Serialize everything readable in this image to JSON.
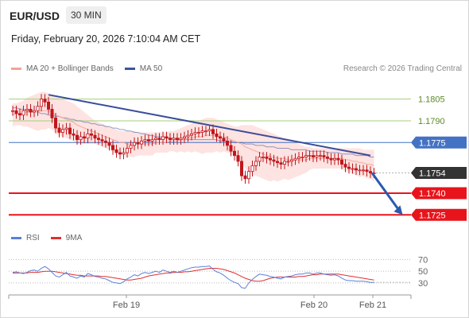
{
  "header": {
    "symbol": "EUR/USD",
    "timeframe": "30 MIN",
    "datetime": "Friday, February 20, 2026 7:10:04 AM CET"
  },
  "credit": "Research © 2026 Trading Central",
  "colors": {
    "ma20": "#f4a19a",
    "bollinger_fill": "#fde0de",
    "ma50": "#3a55a0",
    "trendline": "#3a4d9a",
    "pivot": "#4472c4",
    "resistance": "#a6cf7a",
    "support": "#e8141c",
    "candle": "#c0161c",
    "rsi": "#5b7fd9",
    "rsi_ma": "#e03030",
    "last_price_bg": "#333333"
  },
  "chart_data": [
    {
      "type": "candlestick",
      "title": "",
      "legend": [
        {
          "name": "MA 20 + Bollinger Bands",
          "color": "#f4a19a"
        },
        {
          "name": "MA 50",
          "color": "#3a55a0"
        }
      ],
      "legend_position": "top-left",
      "x_ticks": [
        "Feb 19",
        "Feb 20",
        "Feb 21"
      ],
      "ylim": [
        1.1718,
        1.1818
      ],
      "current_price": 1.1754,
      "levels": [
        {
          "value": 1.1805,
          "label": "1.1805",
          "kind": "resistance"
        },
        {
          "value": 1.179,
          "label": "1.1790",
          "kind": "resistance"
        },
        {
          "value": 1.1775,
          "label": "1.1775",
          "kind": "pivot"
        },
        {
          "value": 1.1754,
          "label": "1.1754",
          "kind": "last"
        },
        {
          "value": 1.174,
          "label": "1.1740",
          "kind": "support"
        },
        {
          "value": 1.1725,
          "label": "1.1725",
          "kind": "support"
        }
      ],
      "close": [
        1.1797,
        1.1795,
        1.1794,
        1.1797,
        1.1798,
        1.1796,
        1.1797,
        1.18,
        1.1805,
        1.1803,
        1.1798,
        1.1792,
        1.1785,
        1.1782,
        1.1784,
        1.1785,
        1.1781,
        1.178,
        1.1777,
        1.1779,
        1.1778,
        1.1781,
        1.178,
        1.1778,
        1.1777,
        1.1776,
        1.1775,
        1.1773,
        1.177,
        1.1768,
        1.1767,
        1.1768,
        1.1771,
        1.1773,
        1.1775,
        1.1774,
        1.1776,
        1.1777,
        1.1776,
        1.1777,
        1.1778,
        1.1777,
        1.1779,
        1.1778,
        1.1777,
        1.1778,
        1.1777,
        1.1778,
        1.1779,
        1.178,
        1.1781,
        1.1782,
        1.1782,
        1.1783,
        1.1783,
        1.1784,
        1.1781,
        1.1779,
        1.1778,
        1.1776,
        1.1773,
        1.1769,
        1.1766,
        1.1762,
        1.1752,
        1.175,
        1.1755,
        1.1759,
        1.1762,
        1.1765,
        1.1765,
        1.1764,
        1.1763,
        1.1762,
        1.1761,
        1.176,
        1.1762,
        1.1762,
        1.1763,
        1.1764,
        1.1765,
        1.1765,
        1.1766,
        1.1766,
        1.1765,
        1.1766,
        1.1766,
        1.1765,
        1.1764,
        1.1763,
        1.1764,
        1.1763,
        1.176,
        1.1758,
        1.1757,
        1.1757,
        1.1756,
        1.1756,
        1.1756,
        1.1755,
        1.1754,
        1.1754
      ],
      "ma20": [
        1.1794,
        1.1795,
        1.1795,
        1.1795,
        1.1796,
        1.1796,
        1.1796,
        1.1796,
        1.1797,
        1.1797,
        1.1797,
        1.1796,
        1.1794,
        1.1793,
        1.1792,
        1.1791,
        1.179,
        1.1789,
        1.1787,
        1.1786,
        1.1785,
        1.1784,
        1.1783,
        1.1782,
        1.1781,
        1.178,
        1.1779,
        1.1778,
        1.1777,
        1.1776,
        1.1775,
        1.1775,
        1.1774,
        1.1774,
        1.1774,
        1.1774,
        1.1774,
        1.1774,
        1.1774,
        1.1774,
        1.1775,
        1.1775,
        1.1775,
        1.1775,
        1.1776,
        1.1776,
        1.1776,
        1.1777,
        1.1777,
        1.1778,
        1.1778,
        1.1779,
        1.1779,
        1.1779,
        1.178,
        1.178,
        1.178,
        1.178,
        1.1779,
        1.1779,
        1.1778,
        1.1777,
        1.1776,
        1.1775,
        1.1774,
        1.1772,
        1.1771,
        1.177,
        1.1769,
        1.1768,
        1.1767,
        1.1766,
        1.1765,
        1.1765,
        1.1764,
        1.1764,
        1.1764,
        1.1763,
        1.1763,
        1.1763,
        1.1763,
        1.1763,
        1.1763,
        1.1764,
        1.1764,
        1.1764,
        1.1764,
        1.1764,
        1.1764,
        1.1764,
        1.1764,
        1.1764,
        1.1764,
        1.1763,
        1.1763,
        1.1762,
        1.1762,
        1.1761,
        1.1761,
        1.176,
        1.176,
        1.1759
      ],
      "bb_upper": [
        1.1802,
        1.1802,
        1.1803,
        1.1804,
        1.1806,
        1.1807,
        1.1808,
        1.1809,
        1.181,
        1.181,
        1.1809,
        1.1808,
        1.1807,
        1.1806,
        1.1805,
        1.1804,
        1.1803,
        1.1802,
        1.18,
        1.1798,
        1.1796,
        1.1794,
        1.1792,
        1.179,
        1.1789,
        1.1788,
        1.1787,
        1.1786,
        1.1785,
        1.1784,
        1.1783,
        1.1783,
        1.1783,
        1.1783,
        1.1783,
        1.1782,
        1.1782,
        1.1782,
        1.1782,
        1.1782,
        1.1782,
        1.1782,
        1.1782,
        1.1782,
        1.1783,
        1.1783,
        1.1784,
        1.1785,
        1.1786,
        1.1787,
        1.1788,
        1.1789,
        1.179,
        1.1791,
        1.1792,
        1.1792,
        1.1792,
        1.1791,
        1.179,
        1.1789,
        1.1788,
        1.1787,
        1.1786,
        1.1786,
        1.1787,
        1.1787,
        1.1787,
        1.1787,
        1.1786,
        1.1785,
        1.1784,
        1.1783,
        1.1782,
        1.1781,
        1.178,
        1.1779,
        1.1778,
        1.1777,
        1.1776,
        1.1775,
        1.1774,
        1.1773,
        1.1772,
        1.1772,
        1.1771,
        1.1771,
        1.1771,
        1.1771,
        1.1771,
        1.1771,
        1.1771,
        1.1771,
        1.1771,
        1.1771,
        1.1771,
        1.1771,
        1.1771,
        1.1771,
        1.177,
        1.177,
        1.177,
        1.177
      ],
      "bb_lower": [
        1.1786,
        1.1787,
        1.1787,
        1.1786,
        1.1786,
        1.1785,
        1.1784,
        1.1783,
        1.1784,
        1.1784,
        1.1785,
        1.1784,
        1.1781,
        1.178,
        1.1779,
        1.1778,
        1.1777,
        1.1776,
        1.1774,
        1.1774,
        1.1774,
        1.1774,
        1.1774,
        1.1774,
        1.1773,
        1.1772,
        1.1771,
        1.177,
        1.1769,
        1.1768,
        1.1767,
        1.1767,
        1.1765,
        1.1765,
        1.1765,
        1.1766,
        1.1766,
        1.1766,
        1.1766,
        1.1766,
        1.1768,
        1.1768,
        1.1768,
        1.1768,
        1.1769,
        1.1769,
        1.1768,
        1.1769,
        1.1768,
        1.1769,
        1.1768,
        1.1769,
        1.1768,
        1.1767,
        1.1768,
        1.1768,
        1.1768,
        1.1769,
        1.1768,
        1.1769,
        1.1768,
        1.1767,
        1.1766,
        1.1764,
        1.1761,
        1.1757,
        1.1755,
        1.1753,
        1.1752,
        1.1751,
        1.175,
        1.1749,
        1.1748,
        1.1749,
        1.1748,
        1.1749,
        1.175,
        1.1749,
        1.175,
        1.1751,
        1.1752,
        1.1753,
        1.1754,
        1.1756,
        1.1757,
        1.1757,
        1.1757,
        1.1757,
        1.1757,
        1.1757,
        1.1757,
        1.1757,
        1.1757,
        1.1755,
        1.1755,
        1.1753,
        1.1753,
        1.1751,
        1.1752,
        1.175,
        1.175,
        1.1748
      ],
      "ma50": [
        1.1799,
        1.1799,
        1.1798,
        1.1798,
        1.1797,
        1.1797,
        1.1796,
        1.1796,
        1.1795,
        1.1795,
        1.1794,
        1.1794,
        1.1793,
        1.1793,
        1.1792,
        1.1792,
        1.1791,
        1.1791,
        1.179,
        1.179,
        1.1789,
        1.1789,
        1.1788,
        1.1788,
        1.1787,
        1.1787,
        1.1786,
        1.1786,
        1.1785,
        1.1785,
        1.1784,
        1.1784,
        1.1783,
        1.1783,
        1.1782,
        1.1782,
        1.1781,
        1.1781,
        1.178,
        1.178,
        1.1779,
        1.1779,
        1.1779,
        1.1778,
        1.1778,
        1.1778,
        1.1777,
        1.1777,
        1.1777,
        1.1777,
        1.1777,
        1.1777,
        1.1777,
        1.1777,
        1.1777,
        1.1777,
        1.1777,
        1.1777,
        1.1776,
        1.1776,
        1.1776,
        1.1776,
        1.1775,
        1.1775,
        1.1775,
        1.1774,
        1.1774,
        1.1774,
        1.1773,
        1.1773,
        1.1773,
        1.1772,
        1.1772,
        1.1772,
        1.1771,
        1.1771,
        1.1771,
        1.1771,
        1.177,
        1.177,
        1.177,
        1.177,
        1.177,
        1.1769,
        1.1769,
        1.1769,
        1.1769,
        1.1769,
        1.1768,
        1.1768,
        1.1768,
        1.1768,
        1.1767,
        1.1767,
        1.1767,
        1.1767,
        1.1766,
        1.1766,
        1.1766,
        1.1766,
        1.1765,
        1.1765
      ],
      "trendline": {
        "start": {
          "index": 10,
          "value": 1.1808
        },
        "end": {
          "index": 100,
          "value": 1.1766
        }
      },
      "projection_arrow": {
        "start": {
          "index": 100,
          "value": 1.1754
        },
        "end": {
          "index": 109,
          "value": 1.1725
        }
      }
    },
    {
      "type": "line",
      "title": "",
      "legend": [
        {
          "name": "RSI",
          "color": "#5b7fd9"
        },
        {
          "name": "9MA",
          "color": "#e03030"
        }
      ],
      "legend_position": "top-left",
      "y_ticks": [
        70,
        50,
        30
      ],
      "ylim": [
        15,
        80
      ],
      "rsi": [
        48,
        49,
        47,
        46,
        48,
        51,
        52,
        50,
        55,
        58,
        54,
        48,
        42,
        40,
        44,
        48,
        42,
        40,
        38,
        42,
        40,
        46,
        44,
        41,
        40,
        38,
        37,
        34,
        31,
        30,
        29,
        32,
        37,
        40,
        44,
        42,
        46,
        48,
        46,
        48,
        50,
        48,
        52,
        50,
        48,
        50,
        48,
        50,
        52,
        54,
        56,
        57,
        57,
        58,
        58,
        59,
        53,
        49,
        47,
        43,
        38,
        34,
        31,
        29,
        22,
        21,
        30,
        36,
        41,
        45,
        44,
        43,
        41,
        40,
        38,
        37,
        40,
        41,
        42,
        44,
        45,
        45,
        47,
        47,
        45,
        47,
        47,
        45,
        44,
        43,
        44,
        42,
        38,
        35,
        34,
        34,
        33,
        33,
        33,
        32,
        31,
        31
      ],
      "rsi_ma": [
        47,
        47,
        47,
        47,
        47,
        48,
        48,
        48,
        49,
        50,
        50,
        50,
        49,
        48,
        47,
        46,
        45,
        44,
        43,
        43,
        42,
        42,
        42,
        42,
        42,
        41,
        41,
        40,
        39,
        38,
        37,
        36,
        35,
        35,
        36,
        37,
        38,
        40,
        42,
        43,
        44,
        45,
        46,
        47,
        47,
        48,
        48,
        48,
        49,
        49,
        50,
        51,
        52,
        53,
        54,
        55,
        55,
        55,
        54,
        53,
        51,
        49,
        47,
        44,
        41,
        38,
        36,
        34,
        33,
        33,
        34,
        36,
        38,
        39,
        40,
        40,
        40,
        40,
        40,
        40,
        41,
        41,
        42,
        43,
        44,
        44,
        45,
        45,
        45,
        45,
        45,
        45,
        44,
        43,
        42,
        41,
        40,
        39,
        38,
        37,
        36,
        35
      ]
    }
  ]
}
